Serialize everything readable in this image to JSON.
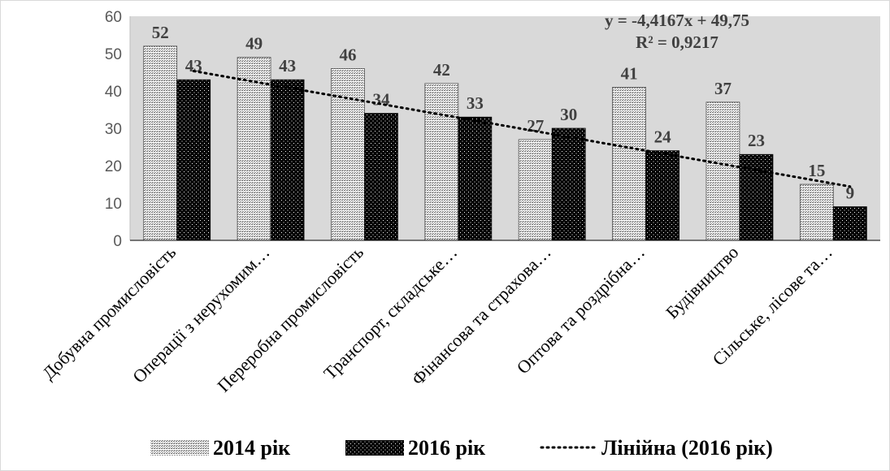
{
  "chart_data": {
    "type": "bar",
    "categories": [
      "Добувна промисловість",
      "Операції з нерухомим…",
      "Переробна промисловість",
      "Транспорт, складське…",
      "Фінансова та страхова…",
      "Оптова та роздрібна…",
      "Будівництво",
      "Сільське, лісове та…"
    ],
    "series": [
      {
        "name": "2014 рік",
        "values": [
          52,
          49,
          46,
          42,
          27,
          41,
          37,
          15
        ],
        "pattern": "crosshatch-light"
      },
      {
        "name": "2016 рік",
        "values": [
          43,
          43,
          34,
          33,
          30,
          24,
          23,
          9
        ],
        "pattern": "dots-dark"
      }
    ],
    "trendline": {
      "name": "Лінійна (2016 рік)",
      "series": "2016 рік",
      "equation": "y = -4,4167x + 49,75",
      "r_squared": "R² = 0,9217",
      "slope": -4.4167,
      "intercept": 49.75
    },
    "ylim": [
      0,
      60
    ],
    "yticks": [
      0,
      10,
      20,
      30,
      40,
      50,
      60
    ],
    "grid": false,
    "legend": "bottom",
    "colors": {
      "plot_bg": "#d9d9d9",
      "bar2014": "#d9d9d9",
      "bar2016": "#000000",
      "label": "#404040"
    }
  }
}
